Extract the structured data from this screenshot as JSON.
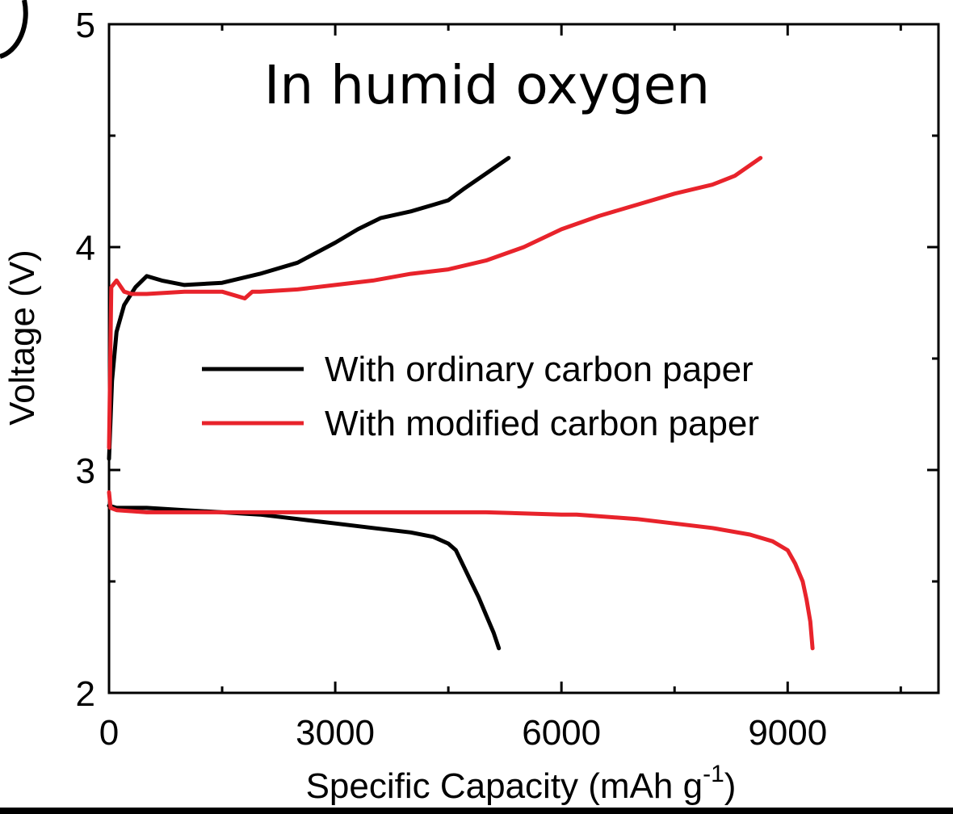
{
  "chart_data": {
    "type": "line",
    "annotation": "In humid oxygen",
    "xlabel": "Specific Capacity (mAh g",
    "xlabel_sup": "-1",
    "xlabel_close": ")",
    "ylabel": "Voltage (V)",
    "xlim": [
      0,
      11000
    ],
    "ylim": [
      2,
      5
    ],
    "xticks": [
      0,
      3000,
      6000,
      9000
    ],
    "xtick_labels": [
      "0",
      "3000",
      "6000",
      "9000"
    ],
    "xminor": [
      1500,
      4500,
      7500,
      10500
    ],
    "yticks": [
      2,
      3,
      4,
      5
    ],
    "ytick_labels": [
      "2",
      "3",
      "4",
      "5"
    ],
    "yminor": [
      2.5,
      3.5,
      4.5
    ],
    "legend_position": "center-right",
    "series": [
      {
        "name": "With ordinary carbon paper",
        "color": "#000000",
        "discharge": {
          "x": [
            0,
            100,
            500,
            1000,
            1500,
            2000,
            2500,
            3000,
            3500,
            4000,
            4300,
            4500,
            4600,
            4700,
            4800,
            4900,
            5000,
            5100,
            5170
          ],
          "y": [
            2.84,
            2.83,
            2.83,
            2.82,
            2.81,
            2.8,
            2.78,
            2.76,
            2.74,
            2.72,
            2.7,
            2.67,
            2.64,
            2.57,
            2.5,
            2.43,
            2.35,
            2.27,
            2.2
          ]
        },
        "charge": {
          "x": [
            0,
            40,
            100,
            200,
            350,
            500,
            700,
            1000,
            1500,
            2000,
            2500,
            3000,
            3300,
            3600,
            4000,
            4300,
            4500,
            4700,
            5000,
            5300
          ],
          "y": [
            3.05,
            3.4,
            3.62,
            3.74,
            3.82,
            3.87,
            3.85,
            3.83,
            3.84,
            3.88,
            3.93,
            4.02,
            4.08,
            4.13,
            4.16,
            4.19,
            4.21,
            4.26,
            4.33,
            4.4
          ]
        }
      },
      {
        "name": "With modified carbon paper",
        "color": "#e8232b",
        "discharge": {
          "x": [
            0,
            20,
            100,
            500,
            1000,
            2000,
            3000,
            4000,
            5000,
            6000,
            6200,
            7000,
            8000,
            8500,
            8800,
            9000,
            9100,
            9200,
            9250,
            9300,
            9330
          ],
          "y": [
            2.9,
            2.83,
            2.82,
            2.81,
            2.81,
            2.81,
            2.81,
            2.81,
            2.81,
            2.8,
            2.8,
            2.78,
            2.74,
            2.71,
            2.68,
            2.64,
            2.58,
            2.5,
            2.42,
            2.32,
            2.2
          ]
        },
        "charge": {
          "x": [
            0,
            30,
            100,
            200,
            300,
            500,
            1000,
            1500,
            1700,
            1800,
            1900,
            2000,
            2500,
            3000,
            3500,
            4000,
            4500,
            5000,
            5500,
            6000,
            6500,
            7000,
            7500,
            8000,
            8300,
            8640
          ],
          "y": [
            3.1,
            3.82,
            3.85,
            3.8,
            3.79,
            3.79,
            3.8,
            3.8,
            3.78,
            3.77,
            3.8,
            3.8,
            3.81,
            3.83,
            3.85,
            3.88,
            3.9,
            3.94,
            4.0,
            4.08,
            4.14,
            4.19,
            4.24,
            4.28,
            4.32,
            4.4
          ]
        }
      }
    ]
  }
}
